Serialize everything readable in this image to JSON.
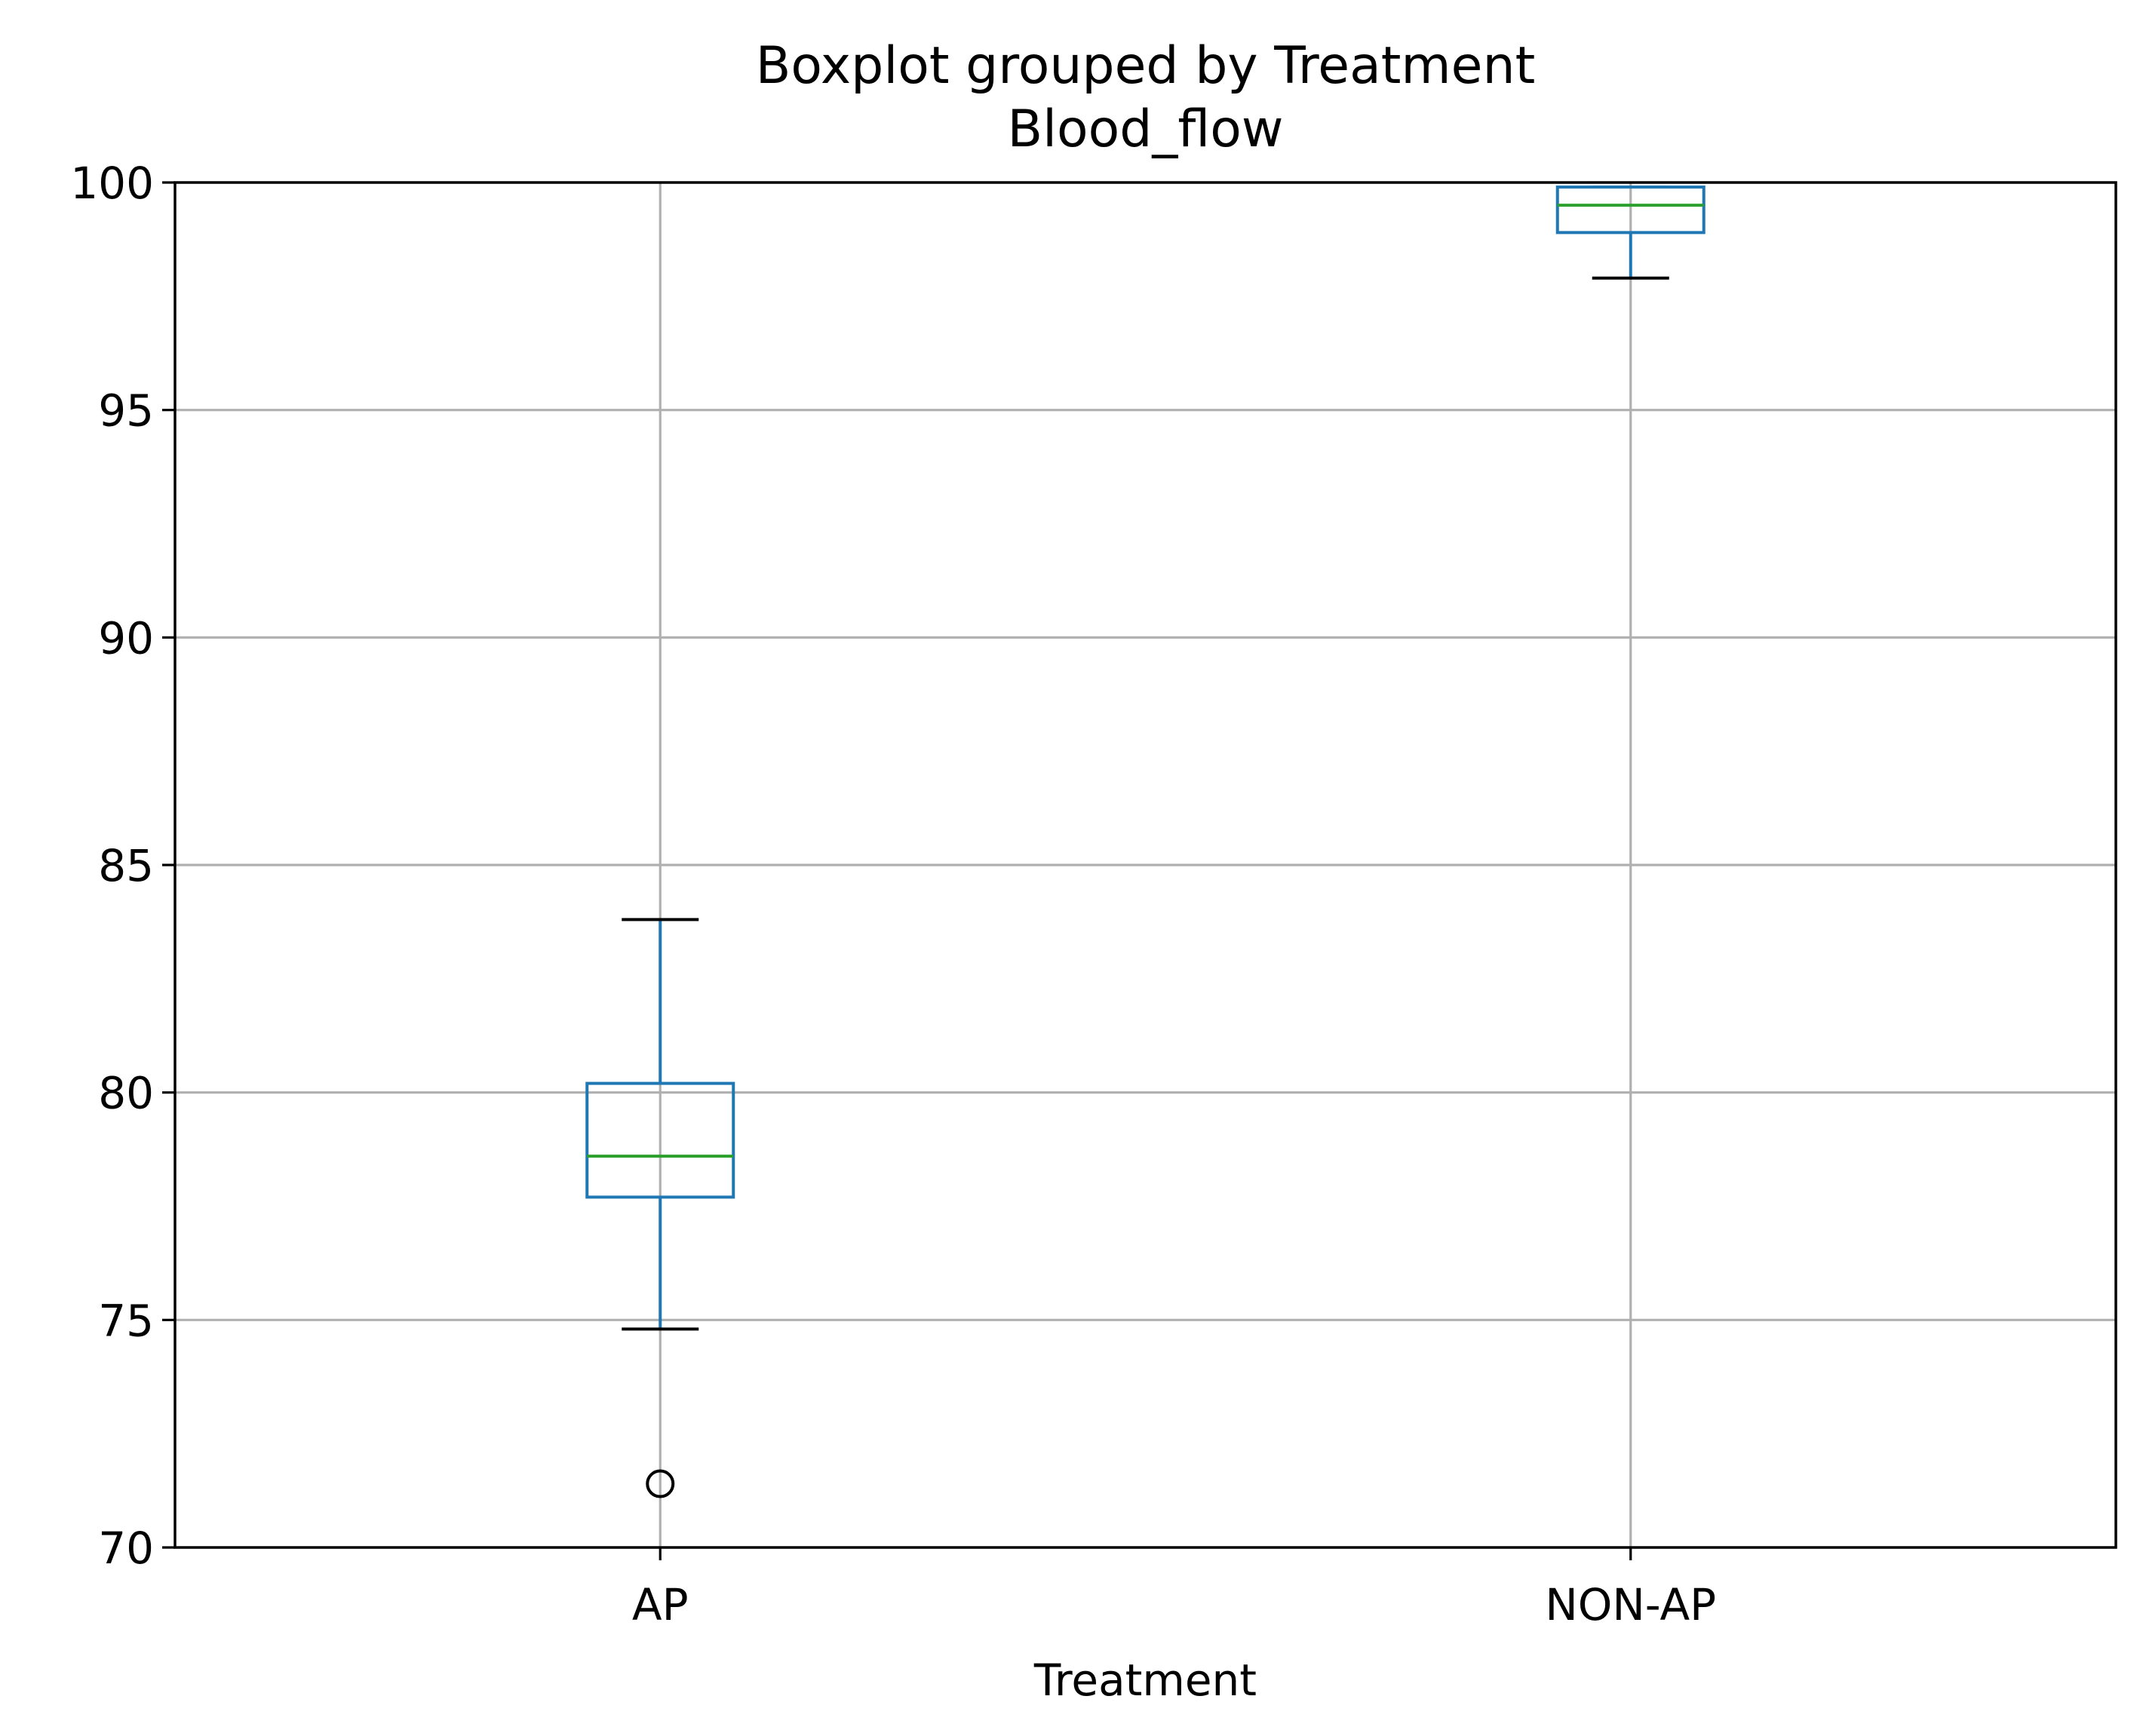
{
  "chart_data": {
    "type": "boxplot",
    "title": "Boxplot grouped by Treatment",
    "subtitle": "Blood_flow",
    "xlabel": "Treatment",
    "ylabel": "",
    "ylim": [
      70,
      100
    ],
    "yticks": [
      "70",
      "75",
      "80",
      "85",
      "90",
      "95",
      "100"
    ],
    "grid": true,
    "categories": [
      "AP",
      "NON-AP"
    ],
    "boxes": [
      {
        "category": "AP",
        "whisker_low": 74.8,
        "q1": 77.7,
        "median": 78.6,
        "q3": 80.2,
        "whisker_high": 83.8,
        "outliers": [
          71.4
        ]
      },
      {
        "category": "NON-AP",
        "whisker_low": 97.9,
        "q1": 98.9,
        "median": 99.5,
        "q3": 99.9,
        "whisker_high": 99.9,
        "outliers": []
      }
    ],
    "colors": {
      "box": "#1f77b4",
      "median": "#2ca02c",
      "cap": "#000000",
      "outlier": "#000000",
      "grid": "#b0b0b0",
      "axes": "#000000"
    }
  }
}
